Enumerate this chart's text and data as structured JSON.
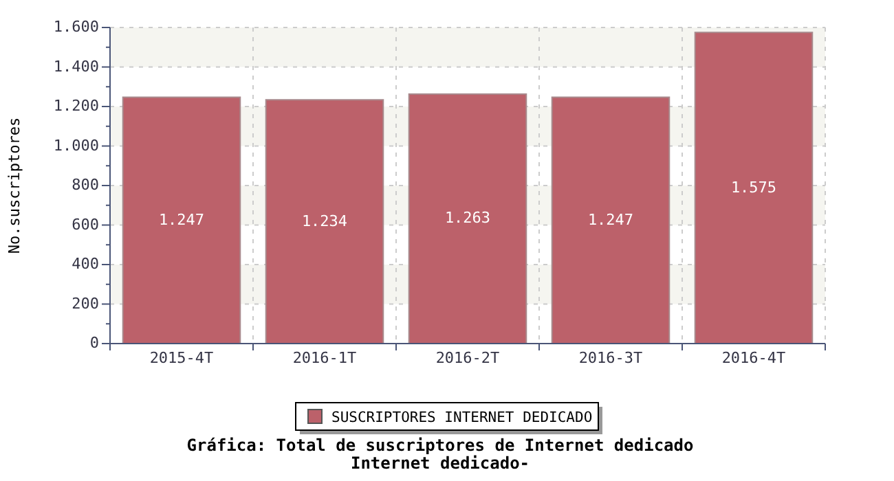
{
  "chart_data": {
    "type": "bar",
    "title": "Gráfica: Total de suscriptores de Internet dedicado",
    "subtitle": "Internet dedicado-",
    "ylabel": "No.suscriptores",
    "categories": [
      "2015-4T",
      "2016-1T",
      "2016-2T",
      "2016-3T",
      "2016-4T"
    ],
    "series": [
      {
        "name": "SUSCRIPTORES INTERNET DEDICADO",
        "color": "#bc616a",
        "values": [
          1247,
          1234,
          1263,
          1247,
          1575
        ],
        "value_labels": [
          "1.247",
          "1.234",
          "1.263",
          "1.247",
          "1.575"
        ]
      }
    ],
    "ylim": [
      0,
      1600
    ],
    "yticks": [
      0,
      {
        "value": 200,
        "label": "200"
      },
      {
        "value": 400,
        "label": "400"
      },
      {
        "value": 600,
        "label": "600"
      },
      {
        "value": 800,
        "label": "800"
      },
      {
        "value": 1000,
        "label": "1.000"
      },
      {
        "value": 1200,
        "label": "1.200"
      },
      {
        "value": 1400,
        "label": "1.400"
      },
      {
        "value": 1600,
        "label": "1.600"
      }
    ],
    "grid": true,
    "legend": "bottom"
  }
}
